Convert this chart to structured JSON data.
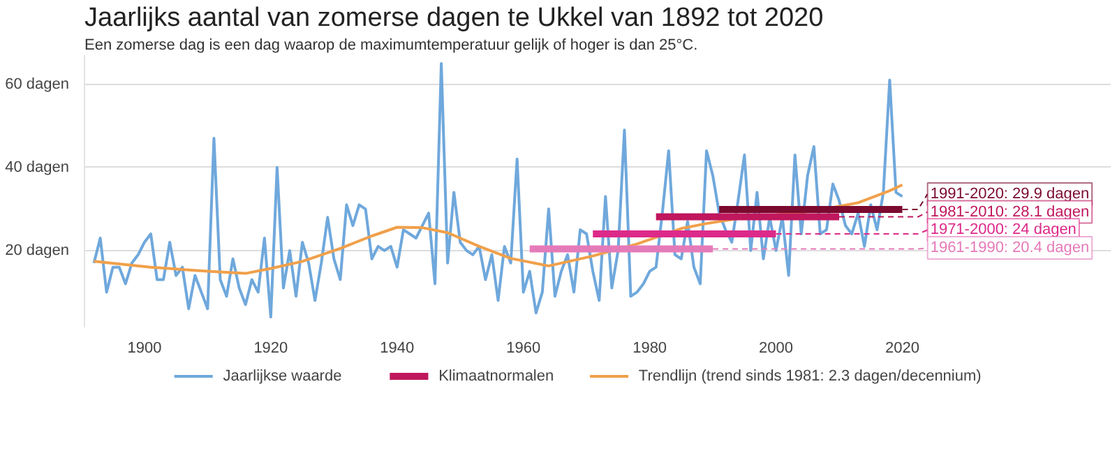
{
  "chart_data": {
    "type": "line",
    "title": "Jaarlijks aantal van zomerse dagen te Ukkel van 1892 tot 2020",
    "subtitle": "Een zomerse dag is een dag waarop de maximumtemperatuur gelijk of hoger is dan 25°C.",
    "x": [
      1892,
      1893,
      1894,
      1895,
      1896,
      1897,
      1898,
      1899,
      1900,
      1901,
      1902,
      1903,
      1904,
      1905,
      1906,
      1907,
      1908,
      1909,
      1910,
      1911,
      1912,
      1913,
      1914,
      1915,
      1916,
      1917,
      1918,
      1919,
      1920,
      1921,
      1922,
      1923,
      1924,
      1925,
      1926,
      1927,
      1928,
      1929,
      1930,
      1931,
      1932,
      1933,
      1934,
      1935,
      1936,
      1937,
      1938,
      1939,
      1940,
      1941,
      1942,
      1943,
      1944,
      1945,
      1946,
      1947,
      1948,
      1949,
      1950,
      1951,
      1952,
      1953,
      1954,
      1955,
      1956,
      1957,
      1958,
      1959,
      1960,
      1961,
      1962,
      1963,
      1964,
      1965,
      1966,
      1967,
      1968,
      1969,
      1970,
      1971,
      1972,
      1973,
      1974,
      1975,
      1976,
      1977,
      1978,
      1979,
      1980,
      1981,
      1982,
      1983,
      1984,
      1985,
      1986,
      1987,
      1988,
      1989,
      1990,
      1991,
      1992,
      1993,
      1994,
      1995,
      1996,
      1997,
      1998,
      1999,
      2000,
      2001,
      2002,
      2003,
      2004,
      2005,
      2006,
      2007,
      2008,
      2009,
      2010,
      2011,
      2012,
      2013,
      2014,
      2015,
      2016,
      2017,
      2018,
      2019,
      2020
    ],
    "series": [
      {
        "name": "Jaarlijkse waarde",
        "color": "#6fa8dc",
        "values": [
          17,
          23,
          10,
          16,
          16,
          12,
          17,
          19,
          22,
          24,
          13,
          13,
          22,
          14,
          16,
          6,
          14,
          10,
          6,
          47,
          13,
          9,
          18,
          11,
          7,
          13,
          10,
          23,
          4,
          40,
          11,
          20,
          9,
          22,
          17,
          8,
          17,
          28,
          18,
          13,
          31,
          26,
          31,
          30,
          18,
          21,
          20,
          21,
          16,
          25,
          24,
          23,
          26,
          29,
          12,
          65,
          17,
          34,
          22,
          20,
          19,
          21,
          13,
          19,
          8,
          21,
          17,
          42,
          10,
          15,
          5,
          10,
          30,
          9,
          15,
          19,
          10,
          25,
          24,
          15,
          8,
          33,
          11,
          20,
          49,
          9,
          10,
          12,
          15,
          16,
          29,
          44,
          19,
          18,
          27,
          16,
          12,
          44,
          38,
          29,
          25,
          22,
          32,
          43,
          20,
          34,
          18,
          28,
          20,
          28,
          14,
          43,
          24,
          38,
          45,
          24,
          25,
          36,
          32,
          26,
          24,
          29,
          21,
          31,
          25,
          34,
          61,
          34,
          33
        ]
      },
      {
        "name": "Trendlijn (trend sinds 1981: 2.3 dagen/decennium)",
        "color": "#f0a04b",
        "x": [
          1892,
          1901,
          1910,
          1916,
          1920,
          1925,
          1931,
          1936,
          1940,
          1944,
          1948,
          1953,
          1958,
          1964,
          1971,
          1978,
          1985,
          1989,
          1994,
          2000,
          2006,
          2013,
          2018,
          2020
        ],
        "values": [
          17.4,
          16,
          15,
          14.5,
          15.7,
          17.4,
          20.5,
          23.5,
          25.6,
          25.5,
          24.3,
          21,
          18.1,
          16.3,
          18.7,
          21.6,
          25.3,
          26.5,
          27.7,
          28.6,
          29.5,
          31.5,
          34.4,
          35.8
        ]
      },
      {
        "color": "#7b0a2f",
        "x": [
          1991,
          2020
        ],
        "values": [
          29.9,
          29.9
        ]
      },
      {
        "name": "Klimaatnormalen",
        "color": "#c0175d",
        "x": [
          1981,
          2010
        ],
        "values": [
          28.1,
          28.1
        ]
      },
      {
        "color": "#dd2a8a",
        "x": [
          1971,
          2000
        ],
        "values": [
          24,
          24
        ]
      },
      {
        "color": "#e57ab9",
        "x": [
          1961,
          1990
        ],
        "values": [
          20.4,
          20.4
        ]
      }
    ],
    "annotations": [
      {
        "text": "1991-2020: 29.9 dagen",
        "x": 2020,
        "y": 29.9
      },
      {
        "text": "1981-2010: 28.1 dagen",
        "x": 2010,
        "y": 28.1
      },
      {
        "text": "1971-2000: 24 dagen",
        "x": 2000,
        "y": 24
      },
      {
        "text": "1961-1990: 20.4 dagen",
        "x": 1990,
        "y": 20.4
      }
    ],
    "xlim": [
      1890.5,
      2053
    ],
    "ylim": [
      1.5,
      67
    ],
    "xticks": [
      1900,
      1920,
      1940,
      1960,
      1980,
      2000,
      2020
    ],
    "yticks": [
      {
        "value": 20,
        "label": "20 dagen"
      },
      {
        "value": 40,
        "label": "40 dagen"
      },
      {
        "value": 60,
        "label": "60 dagen"
      }
    ],
    "grid": "y",
    "legend": "bottom",
    "marker": "none",
    "line_style": "solid"
  }
}
